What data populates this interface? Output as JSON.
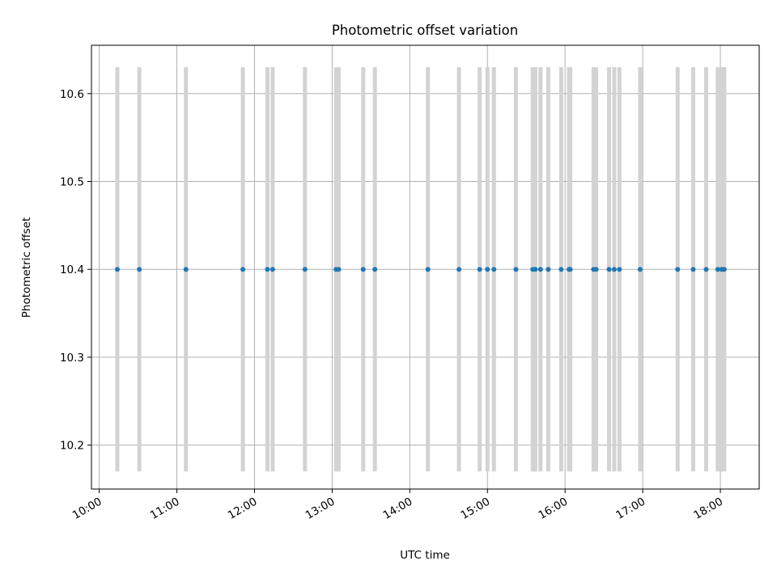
{
  "chart_data": {
    "type": "scatter",
    "title": "Photometric offset variation",
    "xlabel": "UTC time",
    "ylabel": "Photometric offset",
    "x_axis_type": "time",
    "xlim": [
      "09:54",
      "18:30"
    ],
    "ylim": [
      10.15,
      10.655
    ],
    "x_ticks": [
      "10:00",
      "11:00",
      "12:00",
      "13:00",
      "14:00",
      "15:00",
      "16:00",
      "17:00",
      "18:00"
    ],
    "y_ticks": [
      "10.2",
      "10.3",
      "10.4",
      "10.5",
      "10.6"
    ],
    "grid": true,
    "legend": "none",
    "x": [
      "10:14",
      "10:31",
      "11:07",
      "11:51",
      "12:10",
      "12:14",
      "12:39",
      "13:03",
      "13:05",
      "13:24",
      "13:33",
      "14:14",
      "14:38",
      "14:54",
      "15:00",
      "15:05",
      "15:22",
      "15:35",
      "15:37",
      "15:41",
      "15:47",
      "15:57",
      "16:03",
      "16:04",
      "16:22",
      "16:24",
      "16:34",
      "16:38",
      "16:42",
      "16:58",
      "17:27",
      "17:39",
      "17:49",
      "17:58",
      "18:01",
      "18:03"
    ],
    "y": [
      10.4,
      10.4,
      10.4,
      10.4,
      10.4,
      10.4,
      10.4,
      10.4,
      10.4,
      10.4,
      10.4,
      10.4,
      10.4,
      10.4,
      10.4,
      10.4,
      10.4,
      10.4,
      10.4,
      10.4,
      10.4,
      10.4,
      10.4,
      10.4,
      10.4,
      10.4,
      10.4,
      10.4,
      10.4,
      10.4,
      10.4,
      10.4,
      10.4,
      10.4,
      10.4,
      10.4
    ],
    "error_band": [
      10.17,
      10.63
    ],
    "colors": {
      "points": "#1f77b4",
      "error_bars": "#d3d3d3",
      "grid": "#b0b0b0",
      "axes": "#000000"
    }
  }
}
